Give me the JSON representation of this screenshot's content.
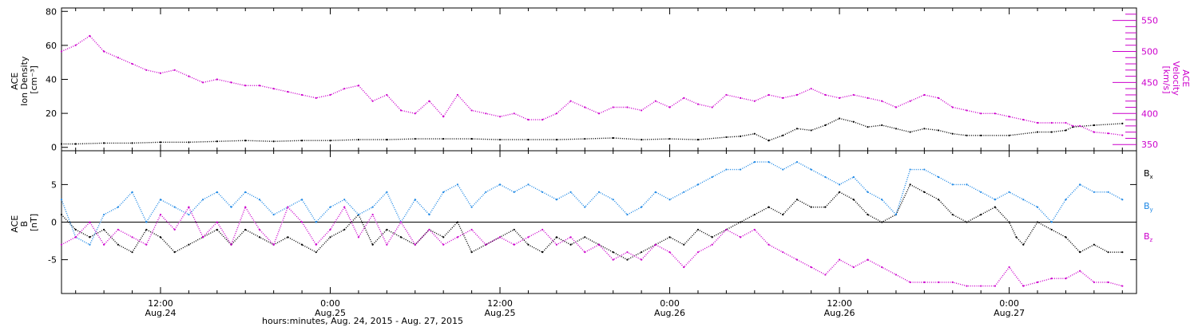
{
  "chart_data": [
    {
      "panel": "top",
      "type": "scatter",
      "x_unit": "hours since Aug. 24, 2015 00:00",
      "xlim": [
        5,
        81
      ],
      "grid": false,
      "left_axis": {
        "label_lines": [
          "ACE",
          "Ion Density",
          "[cm⁻³]"
        ],
        "ylim": [
          -2,
          82
        ],
        "ticks": [
          0,
          20,
          40,
          60,
          80
        ],
        "tick_labels": [
          "0",
          "20",
          "40",
          "60",
          "80"
        ],
        "color": "#000000"
      },
      "right_axis": {
        "label_lines": [
          "ACE",
          "Velocity",
          "[km/s]"
        ],
        "ylim": [
          340,
          570
        ],
        "ticks": [
          350,
          400,
          450,
          500,
          550
        ],
        "tick_labels": [
          "350",
          "400",
          "450",
          "500",
          "550"
        ],
        "color": "#cc00cc"
      },
      "series": [
        {
          "key": "density",
          "axis": "left",
          "color": "#000000",
          "x": [
            5,
            6,
            8,
            10,
            12,
            14,
            16,
            18,
            20,
            22,
            24,
            26,
            28,
            30,
            32,
            34,
            36,
            38,
            40,
            42,
            44,
            46,
            48,
            50,
            52,
            53,
            54,
            55,
            56,
            57,
            58,
            59,
            60,
            61,
            62,
            63,
            64,
            65,
            66,
            67,
            68,
            69,
            70,
            72,
            74,
            75,
            76,
            76.5,
            78,
            80
          ],
          "y": [
            2,
            2,
            2.5,
            2.5,
            3,
            3,
            3.5,
            4,
            3.5,
            4,
            4,
            4.5,
            4.5,
            5,
            5,
            5,
            4.5,
            4.5,
            4.5,
            5,
            5.5,
            4.5,
            5,
            4.5,
            6,
            6.5,
            8,
            4,
            7,
            11,
            10,
            13,
            17,
            15,
            12,
            13,
            11,
            9,
            11,
            10,
            8,
            7,
            7,
            7,
            9,
            9,
            10,
            12,
            13,
            14
          ]
        },
        {
          "key": "velocity",
          "axis": "right",
          "color": "#cc00cc",
          "x": [
            5,
            6,
            7,
            8,
            9,
            10,
            11,
            12,
            13,
            14,
            15,
            16,
            17,
            18,
            19,
            20,
            21,
            22,
            23,
            24,
            25,
            26,
            27,
            28,
            29,
            30,
            31,
            32,
            33,
            34,
            35,
            36,
            37,
            38,
            39,
            40,
            41,
            42,
            43,
            44,
            45,
            46,
            47,
            48,
            49,
            50,
            51,
            52,
            53,
            54,
            55,
            56,
            57,
            58,
            59,
            60,
            61,
            62,
            63,
            64,
            65,
            66,
            67,
            68,
            69,
            70,
            71,
            72,
            73,
            74,
            75,
            76,
            76.5,
            77,
            78,
            79,
            80
          ],
          "y": [
            500,
            510,
            525,
            500,
            490,
            480,
            470,
            465,
            470,
            460,
            450,
            455,
            450,
            445,
            445,
            440,
            435,
            430,
            425,
            430,
            440,
            445,
            420,
            430,
            405,
            400,
            420,
            395,
            430,
            405,
            400,
            395,
            400,
            390,
            390,
            400,
            420,
            410,
            400,
            410,
            410,
            405,
            420,
            410,
            425,
            415,
            410,
            430,
            425,
            420,
            430,
            425,
            430,
            440,
            430,
            425,
            430,
            425,
            420,
            410,
            420,
            430,
            425,
            410,
            405,
            400,
            400,
            395,
            390,
            385,
            385,
            385,
            380,
            380,
            370,
            368,
            365
          ]
        }
      ]
    },
    {
      "panel": "bottom",
      "type": "scatter",
      "x_unit": "hours since Aug. 24, 2015 00:00",
      "xlim": [
        5,
        81
      ],
      "grid": false,
      "zero_line": true,
      "left_axis": {
        "label_lines": [
          "ACE",
          "B",
          "[nT]"
        ],
        "ylim": [
          -9.5,
          9.5
        ],
        "ticks": [
          -5,
          0,
          5
        ],
        "tick_labels": [
          "-5",
          "0",
          "5"
        ],
        "color": "#000000"
      },
      "legend_position": "right",
      "series": [
        {
          "key": "bx",
          "name": "Bx",
          "color": "#000000",
          "x": [
            5,
            6,
            7,
            8,
            9,
            10,
            11,
            12,
            13,
            14,
            15,
            16,
            17,
            18,
            19,
            20,
            21,
            22,
            23,
            24,
            25,
            26,
            27,
            28,
            29,
            30,
            31,
            32,
            33,
            34,
            35,
            36,
            37,
            38,
            39,
            40,
            41,
            42,
            43,
            44,
            45,
            46,
            47,
            48,
            49,
            50,
            51,
            52,
            53,
            54,
            55,
            56,
            57,
            58,
            59,
            60,
            61,
            62,
            63,
            64,
            65,
            66,
            67,
            68,
            69,
            70,
            71,
            72,
            72.5,
            73,
            74,
            75,
            76,
            77,
            78,
            79,
            80
          ],
          "y": [
            1,
            -1,
            -2,
            -1,
            -3,
            -4,
            -1,
            -2,
            -4,
            -3,
            -2,
            -1,
            -3,
            -1,
            -2,
            -3,
            -2,
            -3,
            -4,
            -2,
            -1,
            1,
            -3,
            -1,
            -2,
            -3,
            -1,
            -2,
            0,
            -4,
            -3,
            -2,
            -1,
            -3,
            -4,
            -2,
            -3,
            -2,
            -3,
            -4,
            -5,
            -4,
            -3,
            -2,
            -3,
            -1,
            -2,
            -1,
            0,
            1,
            2,
            1,
            3,
            2,
            2,
            4,
            3,
            1,
            0,
            1,
            5,
            4,
            3,
            1,
            0,
            1,
            2,
            0,
            -2,
            -3,
            0,
            -1,
            -2,
            -4,
            -3,
            -4,
            -4
          ]
        },
        {
          "key": "by",
          "name": "By",
          "color": "#1e88e5",
          "x": [
            5,
            6,
            7,
            8,
            9,
            10,
            11,
            12,
            13,
            14,
            15,
            16,
            17,
            18,
            19,
            20,
            21,
            22,
            23,
            24,
            25,
            26,
            27,
            28,
            29,
            30,
            31,
            32,
            33,
            34,
            35,
            36,
            37,
            38,
            39,
            40,
            41,
            42,
            43,
            44,
            45,
            46,
            47,
            48,
            49,
            50,
            51,
            52,
            53,
            54,
            55,
            56,
            57,
            58,
            59,
            60,
            61,
            62,
            63,
            64,
            65,
            66,
            67,
            68,
            69,
            70,
            71,
            72,
            73,
            74,
            75,
            76,
            77,
            78,
            79,
            80
          ],
          "y": [
            3,
            -2,
            -3,
            1,
            2,
            4,
            0,
            3,
            2,
            1,
            3,
            4,
            2,
            4,
            3,
            1,
            2,
            3,
            0,
            2,
            3,
            1,
            2,
            4,
            0,
            3,
            1,
            4,
            5,
            2,
            4,
            5,
            4,
            5,
            4,
            3,
            4,
            2,
            4,
            3,
            1,
            2,
            4,
            3,
            4,
            5,
            6,
            7,
            7,
            8,
            8,
            7,
            8,
            7,
            6,
            5,
            6,
            4,
            3,
            1,
            7,
            7,
            6,
            5,
            5,
            4,
            3,
            4,
            3,
            2,
            0,
            3,
            5,
            4,
            4,
            3
          ]
        },
        {
          "key": "bz",
          "name": "Bz",
          "color": "#cc00cc",
          "x": [
            5,
            6,
            7,
            8,
            9,
            10,
            11,
            12,
            13,
            14,
            15,
            16,
            17,
            18,
            19,
            20,
            21,
            22,
            23,
            24,
            25,
            26,
            27,
            28,
            29,
            30,
            31,
            32,
            33,
            34,
            35,
            36,
            37,
            38,
            39,
            40,
            41,
            42,
            43,
            44,
            45,
            46,
            47,
            48,
            49,
            50,
            51,
            52,
            53,
            54,
            55,
            56,
            57,
            58,
            59,
            60,
            61,
            62,
            63,
            64,
            65,
            66,
            67,
            68,
            69,
            70,
            71,
            72,
            73,
            74,
            75,
            76,
            77,
            78,
            79,
            80
          ],
          "y": [
            -3,
            -2,
            0,
            -3,
            -1,
            -2,
            -3,
            1,
            -1,
            2,
            -2,
            0,
            -3,
            2,
            -1,
            -3,
            2,
            0,
            -3,
            -1,
            2,
            -2,
            1,
            -3,
            0,
            -3,
            -1,
            -3,
            -2,
            -1,
            -3,
            -2,
            -3,
            -2,
            -1,
            -3,
            -2,
            -4,
            -3,
            -5,
            -4,
            -5,
            -3,
            -4,
            -6,
            -4,
            -3,
            -1,
            -2,
            -1,
            -3,
            -4,
            -5,
            -6,
            -7,
            -5,
            -6,
            -5,
            -6,
            -7,
            -8,
            -8,
            -8,
            -8,
            -8.5,
            -8.5,
            -8.5,
            -6,
            -8.5,
            -8,
            -7.5,
            -7.5,
            -6.5,
            -8,
            -8,
            -8.5
          ]
        }
      ]
    }
  ],
  "x_axis": {
    "title": "hours:minutes, Aug. 24, 2015 - Aug. 27, 2015",
    "ticks": [
      {
        "hours": 12,
        "time": "12:00",
        "date": "Aug.24"
      },
      {
        "hours": 24,
        "time": "0:00",
        "date": "Aug.25"
      },
      {
        "hours": 36,
        "time": "12:00",
        "date": "Aug.25"
      },
      {
        "hours": 48,
        "time": "0:00",
        "date": "Aug.26"
      },
      {
        "hours": 60,
        "time": "12:00",
        "date": "Aug.26"
      },
      {
        "hours": 72,
        "time": "0:00",
        "date": "Aug.27"
      }
    ],
    "minor_step_hours": 2
  }
}
